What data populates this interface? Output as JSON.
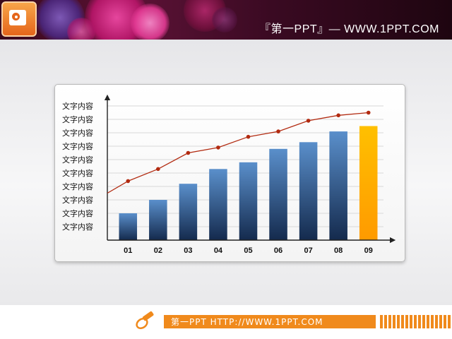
{
  "header": {
    "brand_text": "『第一PPT』— WWW.1PPT.COM",
    "logo_icon": "powerpoint-logo-icon"
  },
  "footer": {
    "text": "第一PPT HTTP://WWW.1PPT.COM",
    "icon": "pencil-icon",
    "accent_color": "#f08a1c"
  },
  "chart_data": {
    "type": "bar",
    "categories": [
      "01",
      "02",
      "03",
      "04",
      "05",
      "06",
      "07",
      "08",
      "09"
    ],
    "values": [
      2,
      3,
      4.2,
      5.3,
      5.8,
      6.8,
      7.3,
      8.1,
      8.5
    ],
    "line_values": [
      4.4,
      5.3,
      6.5,
      6.9,
      7.7,
      8.1,
      8.9,
      9.3,
      9.5
    ],
    "y_tick_labels": [
      "文字内容",
      "文字内容",
      "文字内容",
      "文字内容",
      "文字内容",
      "文字内容",
      "文字内容",
      "文字内容",
      "文字内容",
      "文字内容"
    ],
    "ylim": [
      0,
      10
    ],
    "grid": true,
    "colors": {
      "bar": "#4f82bd",
      "bar_dark": "#142a4d",
      "highlight_bar": "#ffc000",
      "highlight_bar_dark": "#ff9a00",
      "line": "#b22a10",
      "grid": "#d8d8d8"
    },
    "highlight_index": 8
  }
}
